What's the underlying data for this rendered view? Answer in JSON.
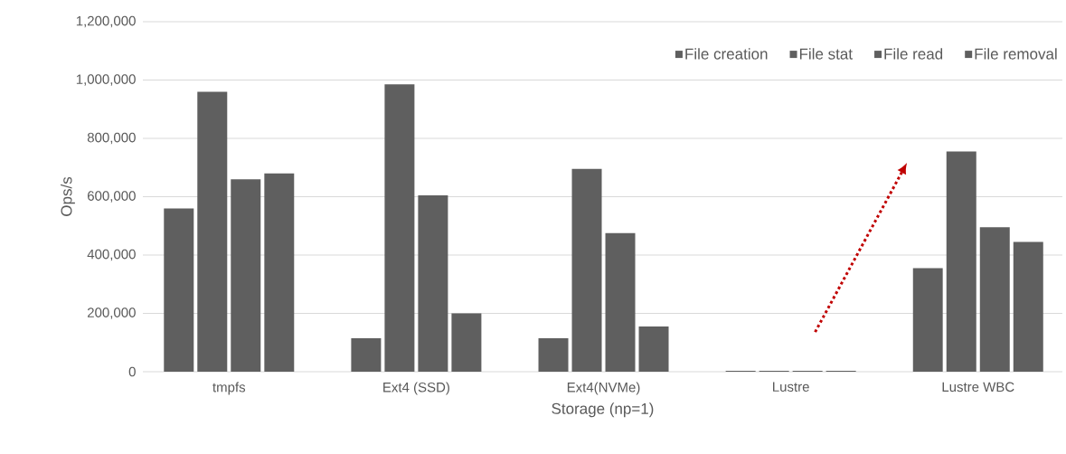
{
  "chart_data": {
    "type": "bar",
    "xlabel": "Storage (np=1)",
    "ylabel": "Ops/s",
    "categories": [
      "tmpfs",
      "Ext4 (SSD)",
      "Ext4(NVMe)",
      "Lustre",
      "Lustre WBC"
    ],
    "series": [
      {
        "name": "File creation",
        "color": "#5f5f5f",
        "values": [
          560000,
          115000,
          115000,
          3000,
          355000
        ]
      },
      {
        "name": "File stat",
        "color": "#5f5f5f",
        "values": [
          960000,
          985000,
          695000,
          3000,
          755000
        ]
      },
      {
        "name": "File read",
        "color": "#5f5f5f",
        "values": [
          660000,
          605000,
          475000,
          3000,
          495000
        ]
      },
      {
        "name": "File removal",
        "color": "#5f5f5f",
        "values": [
          680000,
          200000,
          155000,
          3000,
          445000
        ]
      }
    ],
    "ylim": [
      0,
      1200000
    ],
    "yticks": [
      {
        "value": 0,
        "label": "0"
      },
      {
        "value": 200000,
        "label": "200,000"
      },
      {
        "value": 400000,
        "label": "400,000"
      },
      {
        "value": 600000,
        "label": "600,000"
      },
      {
        "value": 800000,
        "label": "800,000"
      },
      {
        "value": 1000000,
        "label": "1,000,000"
      },
      {
        "value": 1200000,
        "label": "1,200,000"
      }
    ],
    "grid": "y",
    "legend": "top right"
  }
}
